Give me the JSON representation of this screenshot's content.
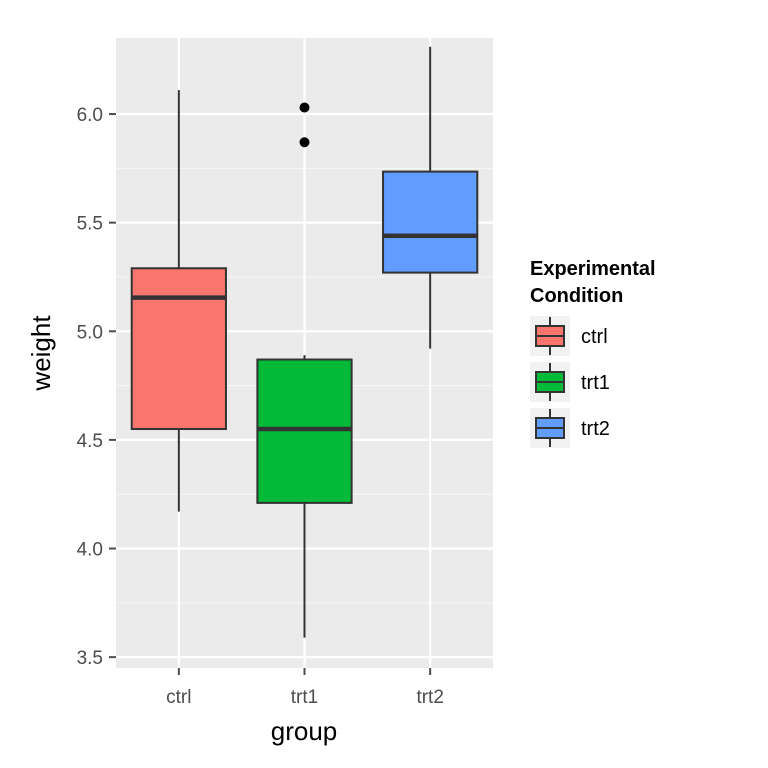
{
  "chart_data": {
    "type": "box",
    "xlabel": "group",
    "ylabel": "weight",
    "ylim": [
      3.45,
      6.35
    ],
    "y_ticks": [
      "3.5",
      "4.0",
      "4.5",
      "5.0",
      "5.5",
      "6.0"
    ],
    "categories": [
      "ctrl",
      "trt1",
      "trt2"
    ],
    "boxes": [
      {
        "category": "ctrl",
        "whisker_low": 4.17,
        "q1": 4.55,
        "median": 5.155,
        "q3": 5.29,
        "whisker_high": 6.11,
        "outliers": [],
        "color": "#F8766D"
      },
      {
        "category": "trt1",
        "whisker_low": 3.59,
        "q1": 4.21,
        "median": 4.55,
        "q3": 4.87,
        "whisker_high": 4.89,
        "outliers": [
          5.87,
          6.03
        ],
        "color": "#00BA38"
      },
      {
        "category": "trt2",
        "whisker_low": 4.92,
        "q1": 5.27,
        "median": 5.44,
        "q3": 5.735,
        "whisker_high": 6.31,
        "outliers": [],
        "color": "#619CFF"
      }
    ],
    "legend": {
      "title_lines": [
        "Experimental",
        "Condition"
      ],
      "entries": [
        "ctrl",
        "trt1",
        "trt2"
      ],
      "placement": "right"
    },
    "grid": true,
    "panel_background": "#EBEBEB"
  }
}
